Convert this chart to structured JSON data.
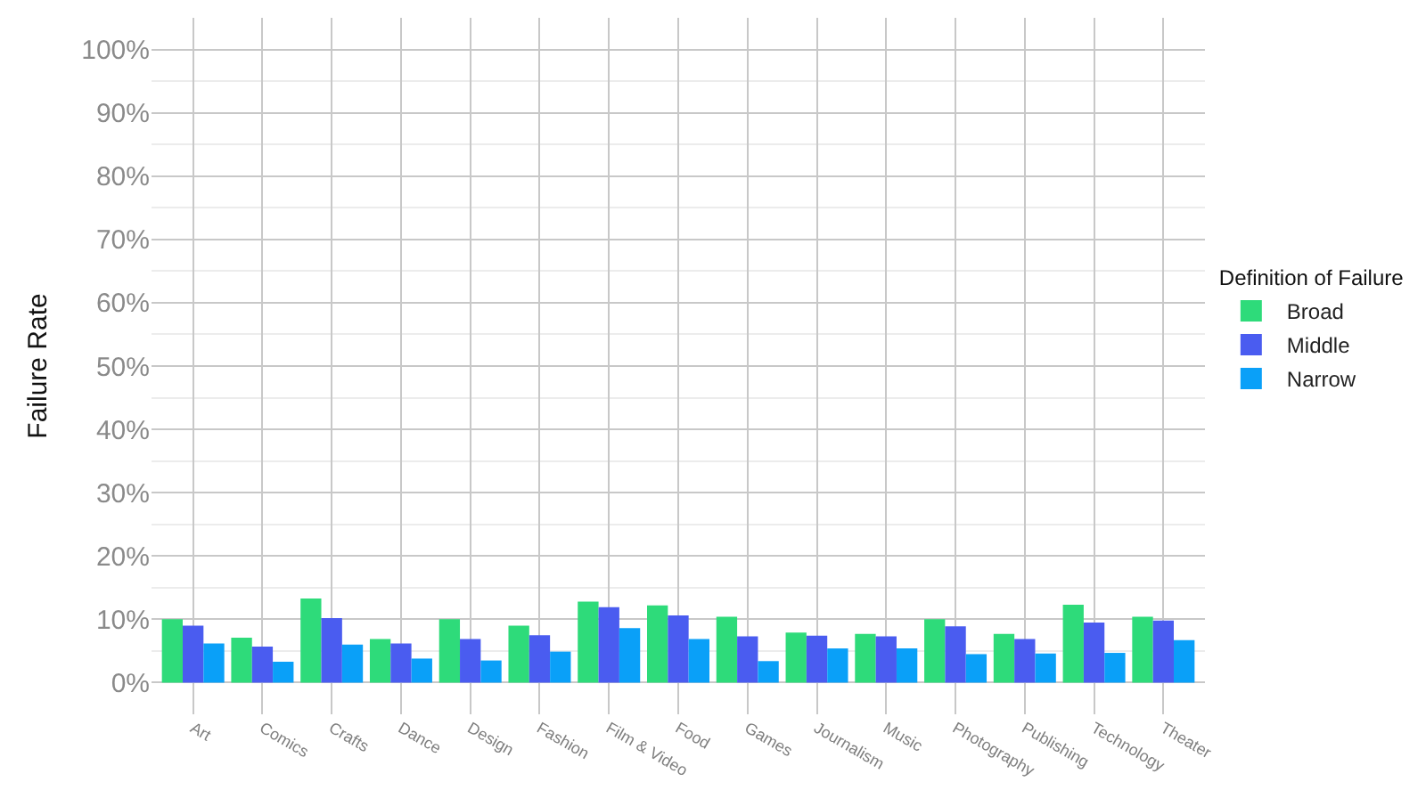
{
  "chart_data": {
    "type": "bar",
    "ylabel": "Failure Rate",
    "legend_title": "Definition of Failure",
    "categories": [
      "Art",
      "Comics",
      "Crafts",
      "Dance",
      "Design",
      "Fashion",
      "Film & Video",
      "Food",
      "Games",
      "Journalism",
      "Music",
      "Photography",
      "Publishing",
      "Technology",
      "Theater"
    ],
    "series": [
      {
        "name": "Broad",
        "color": "#2edb7a",
        "values": [
          10.0,
          7.1,
          13.3,
          6.9,
          10.0,
          9.0,
          12.8,
          12.2,
          10.4,
          7.9,
          7.7,
          10.0,
          7.7,
          12.3,
          10.4
        ]
      },
      {
        "name": "Middle",
        "color": "#4a5cf0",
        "values": [
          9.0,
          5.7,
          10.2,
          6.2,
          6.9,
          7.5,
          11.9,
          10.6,
          7.3,
          7.4,
          7.3,
          8.9,
          6.9,
          9.5,
          9.8
        ]
      },
      {
        "name": "Narrow",
        "color": "#0aa0f8",
        "values": [
          6.2,
          3.3,
          6.0,
          3.8,
          3.5,
          4.9,
          8.6,
          6.9,
          3.4,
          5.4,
          5.4,
          4.5,
          4.6,
          4.7,
          6.7
        ]
      }
    ],
    "ylim": [
      -5,
      105
    ],
    "yticks": [
      {
        "value": 0,
        "label": "0%"
      },
      {
        "value": 10,
        "label": "10%"
      },
      {
        "value": 20,
        "label": "20%"
      },
      {
        "value": 30,
        "label": "30%"
      },
      {
        "value": 40,
        "label": "40%"
      },
      {
        "value": 50,
        "label": "50%"
      },
      {
        "value": 60,
        "label": "60%"
      },
      {
        "value": 70,
        "label": "70%"
      },
      {
        "value": 80,
        "label": "80%"
      },
      {
        "value": 90,
        "label": "90%"
      },
      {
        "value": 100,
        "label": "100%"
      }
    ],
    "grid": true,
    "legend": "right"
  }
}
